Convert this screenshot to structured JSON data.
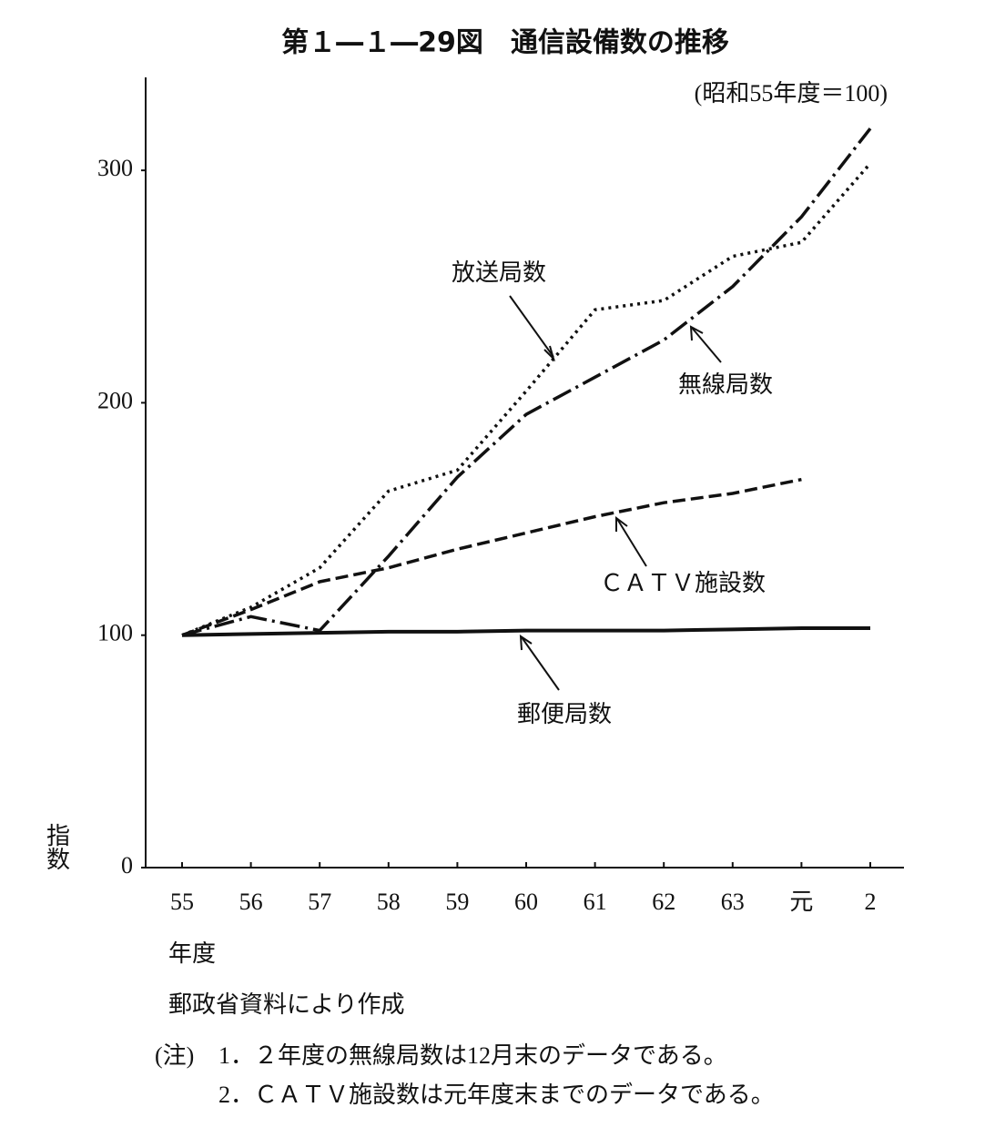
{
  "chart_data": {
    "type": "line",
    "title": "第１―１―29図　通信設備数の推移",
    "subtitle": "(昭和55年度＝100)",
    "y_label": "指数",
    "x_label": "年度",
    "source": "郵政省資料により作成",
    "note_head": "(注)",
    "notes": [
      "1．２年度の無線局数は12月末のデータである。",
      "2．ＣＡＴＶ施設数は元年度末までのデータである。"
    ],
    "categories": [
      "55",
      "56",
      "57",
      "58",
      "59",
      "60",
      "61",
      "62",
      "63",
      "元",
      "2"
    ],
    "ylim": [
      0,
      340
    ],
    "yticks": [
      0,
      100,
      200,
      300
    ],
    "series": [
      {
        "name": "放送局数",
        "color": "#111111",
        "dash": "3,5",
        "values": [
          100,
          112,
          129,
          162,
          171,
          205,
          240,
          244,
          263,
          269,
          303
        ]
      },
      {
        "name": "無線局数",
        "color": "#111111",
        "dash": "22,6,3,6",
        "values": [
          100,
          108,
          102,
          134,
          168,
          195,
          211,
          227,
          250,
          280,
          318
        ]
      },
      {
        "name": "ＣＡＴＶ施設数",
        "color": "#111111",
        "dash": "14,6",
        "values": [
          100,
          111,
          123,
          129,
          137,
          144,
          151,
          157,
          161,
          167,
          null
        ]
      },
      {
        "name": "郵便局数",
        "color": "#111111",
        "dash": "none",
        "values": [
          100,
          100.5,
          101,
          101.5,
          101.5,
          102,
          102,
          102,
          102.5,
          103,
          103
        ]
      }
    ]
  }
}
